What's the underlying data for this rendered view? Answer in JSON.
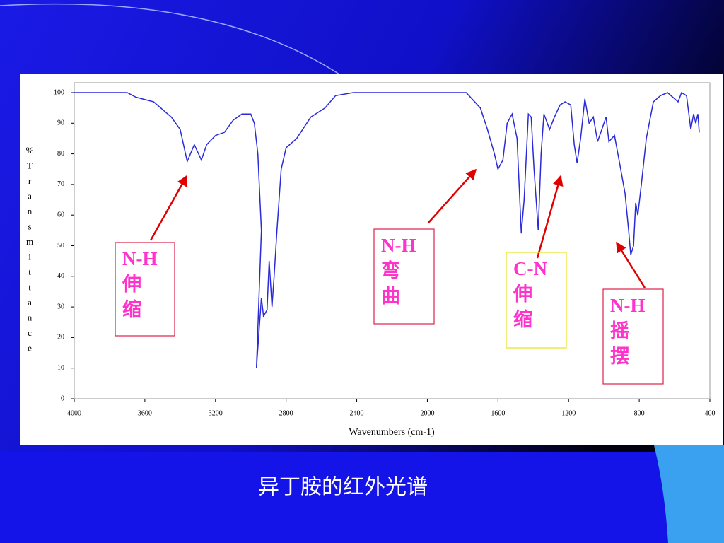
{
  "chart_data": {
    "type": "line",
    "y_label": "%Transmittance",
    "x_label": "Wavenumbers (cm-1)",
    "caption": "异丁胺的红外光谱",
    "color": "#2a2ad8",
    "xlim": [
      4000,
      400
    ],
    "ylim": [
      0,
      100
    ],
    "xticks": [
      4000,
      3600,
      3200,
      2800,
      2400,
      2000,
      1600,
      1200,
      800,
      400
    ],
    "yticks": [
      0,
      10,
      20,
      30,
      40,
      50,
      60,
      70,
      80,
      90,
      100
    ],
    "grid": false,
    "x": [
      4000,
      3700,
      3650,
      3550,
      3450,
      3400,
      3360,
      3320,
      3280,
      3250,
      3200,
      3150,
      3100,
      3050,
      3000,
      2980,
      2960,
      2940,
      2968,
      2940,
      2928,
      2908,
      2896,
      2880,
      2868,
      2852,
      2828,
      2800,
      2740,
      2660,
      2580,
      2520,
      2420,
      1780,
      1700,
      1660,
      1620,
      1600,
      1572,
      1548,
      1520,
      1492,
      1468,
      1452,
      1428,
      1412,
      1396,
      1372,
      1356,
      1340,
      1308,
      1280,
      1248,
      1220,
      1188,
      1168,
      1152,
      1132,
      1108,
      1084,
      1060,
      1036,
      1012,
      988,
      972,
      940,
      908,
      880,
      860,
      848,
      832,
      820,
      808,
      788,
      760,
      720,
      680,
      640,
      600,
      580,
      560,
      532,
      508,
      492,
      480,
      468,
      460
    ],
    "values": [
      100,
      100,
      98.5,
      97,
      92,
      88,
      77.5,
      83,
      78,
      83,
      86,
      87,
      91,
      93,
      93,
      90,
      80,
      55,
      10,
      33,
      27,
      29,
      45,
      30,
      40,
      55,
      75,
      82,
      85,
      92,
      95,
      99,
      100,
      100,
      95,
      88,
      80,
      75,
      78,
      90,
      93,
      85,
      54,
      65,
      93,
      92,
      75,
      55,
      80,
      93,
      88,
      92,
      96,
      97,
      96,
      83,
      77,
      85,
      98,
      90,
      92,
      84,
      88,
      92,
      84,
      86,
      76,
      67,
      55,
      47,
      50,
      64,
      60,
      70,
      85,
      97,
      99,
      100,
      98,
      97,
      100,
      99,
      88,
      93,
      90,
      93,
      87
    ],
    "annotations": [
      {
        "lines": [
          "N-H",
          "伸",
          "缩"
        ],
        "border_color": "#e0204a"
      },
      {
        "lines": [
          "N-H",
          "弯",
          "曲"
        ],
        "border_color": "#e0204a"
      },
      {
        "lines": [
          "C-N",
          "伸",
          "缩"
        ],
        "border_color": "#e8e020"
      },
      {
        "lines": [
          "N-H",
          "摇",
          "摆"
        ],
        "border_color": "#e0204a"
      }
    ]
  }
}
